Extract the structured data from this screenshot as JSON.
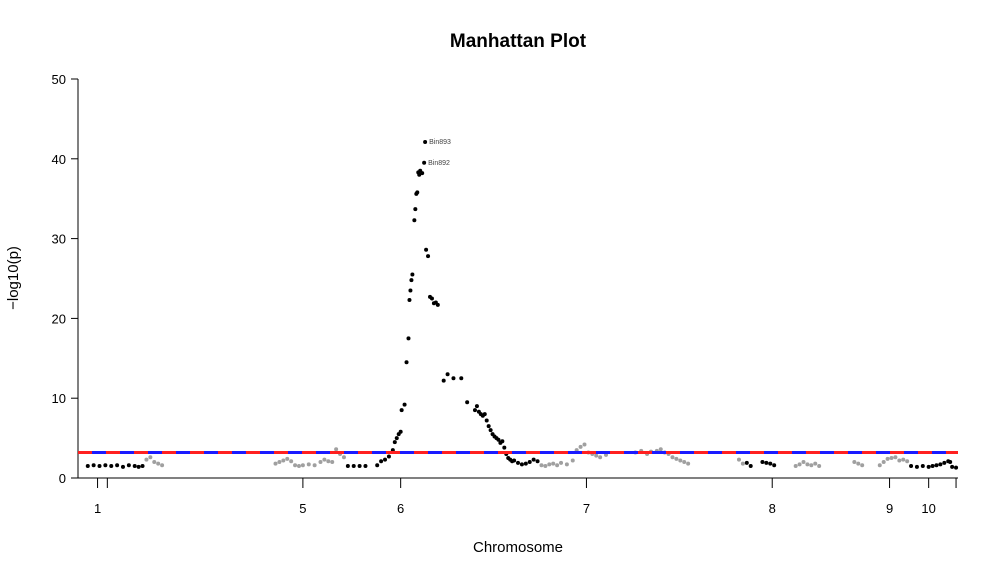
{
  "chart_data": {
    "type": "scatter",
    "title": "Manhattan Plot",
    "xlabel": "Chromosome",
    "ylabel": "−log10(p)",
    "ylim": [
      0,
      50
    ],
    "yticks": [
      0,
      10,
      20,
      30,
      40,
      50
    ],
    "xticks": [
      {
        "label": "1",
        "x": 0.5
      },
      {
        "label": "5",
        "x": 11
      },
      {
        "label": "6",
        "x": 16
      },
      {
        "label": "7",
        "x": 25.5
      },
      {
        "label": "8",
        "x": 35
      },
      {
        "label": "9",
        "x": 41
      },
      {
        "label": "10",
        "x": 43
      }
    ],
    "xlim": [
      -0.5,
      44.5
    ],
    "threshold": 3.2,
    "colors": {
      "odd": "#000000",
      "even": "#a0a0a0",
      "threshold_a": "#1a1aff",
      "threshold_b": "#ff2020"
    },
    "series": [
      {
        "color": "black",
        "points": [
          [
            0.0,
            1.5
          ],
          [
            0.3,
            1.6
          ],
          [
            0.6,
            1.5
          ],
          [
            0.9,
            1.6
          ],
          [
            1.2,
            1.5
          ],
          [
            1.5,
            1.6
          ],
          [
            1.8,
            1.4
          ],
          [
            2.1,
            1.6
          ],
          [
            2.4,
            1.5
          ],
          [
            2.6,
            1.4
          ],
          [
            2.8,
            1.5
          ]
        ]
      },
      {
        "color": "gray",
        "points": [
          [
            3.0,
            2.3
          ],
          [
            3.2,
            2.6
          ],
          [
            3.4,
            2.0
          ],
          [
            3.6,
            1.8
          ],
          [
            3.8,
            1.6
          ],
          [
            9.6,
            1.8
          ],
          [
            9.8,
            2.0
          ],
          [
            10.0,
            2.2
          ],
          [
            10.2,
            2.4
          ],
          [
            10.4,
            2.1
          ],
          [
            10.6,
            1.6
          ],
          [
            10.8,
            1.5
          ],
          [
            11.0,
            1.6
          ],
          [
            11.3,
            1.7
          ],
          [
            11.6,
            1.6
          ],
          [
            11.9,
            2.0
          ],
          [
            12.1,
            2.3
          ],
          [
            12.3,
            2.1
          ],
          [
            12.5,
            2.0
          ],
          [
            12.7,
            3.6
          ],
          [
            12.9,
            3.0
          ],
          [
            13.1,
            2.6
          ]
        ]
      },
      {
        "color": "black",
        "points": [
          [
            13.3,
            1.5
          ],
          [
            13.6,
            1.5
          ],
          [
            13.9,
            1.5
          ],
          [
            14.2,
            1.5
          ],
          [
            14.8,
            1.6
          ],
          [
            15.0,
            2.1
          ],
          [
            15.2,
            2.3
          ],
          [
            15.4,
            2.7
          ],
          [
            15.6,
            3.5
          ],
          [
            15.7,
            4.5
          ],
          [
            15.8,
            5.0
          ],
          [
            15.9,
            5.5
          ],
          [
            16.0,
            5.8
          ],
          [
            16.05,
            8.5
          ],
          [
            16.2,
            9.2
          ],
          [
            16.3,
            14.5
          ],
          [
            16.4,
            17.5
          ],
          [
            16.45,
            22.3
          ],
          [
            16.5,
            23.5
          ],
          [
            16.55,
            24.8
          ],
          [
            16.6,
            25.5
          ],
          [
            16.7,
            32.3
          ],
          [
            16.75,
            33.7
          ],
          [
            16.8,
            35.6
          ],
          [
            16.85,
            35.8
          ],
          [
            16.9,
            38.3
          ],
          [
            16.95,
            38.0
          ],
          [
            17.0,
            38.5
          ],
          [
            17.1,
            38.2
          ],
          [
            17.2,
            39.5
          ],
          [
            17.25,
            42.1
          ],
          [
            17.3,
            28.6
          ],
          [
            17.4,
            27.8
          ],
          [
            17.5,
            22.7
          ],
          [
            17.6,
            22.5
          ],
          [
            17.7,
            21.9
          ],
          [
            17.8,
            22.0
          ],
          [
            17.9,
            21.7
          ],
          [
            18.2,
            12.2
          ],
          [
            18.4,
            13.0
          ],
          [
            18.7,
            12.5
          ],
          [
            19.1,
            12.5
          ],
          [
            19.4,
            9.5
          ],
          [
            19.8,
            8.5
          ],
          [
            19.9,
            9.0
          ],
          [
            20.0,
            8.3
          ],
          [
            20.1,
            8.0
          ],
          [
            20.2,
            7.8
          ],
          [
            20.3,
            8.0
          ],
          [
            20.4,
            7.2
          ],
          [
            20.5,
            6.5
          ],
          [
            20.6,
            6.0
          ],
          [
            20.7,
            5.5
          ],
          [
            20.8,
            5.2
          ],
          [
            20.9,
            5.0
          ],
          [
            21.0,
            4.8
          ],
          [
            21.1,
            4.4
          ],
          [
            21.2,
            4.6
          ],
          [
            21.3,
            3.8
          ],
          [
            21.4,
            3.0
          ],
          [
            21.5,
            2.5
          ],
          [
            21.6,
            2.3
          ],
          [
            21.7,
            2.1
          ],
          [
            21.8,
            2.2
          ],
          [
            22.0,
            1.9
          ],
          [
            22.2,
            1.7
          ],
          [
            22.4,
            1.8
          ],
          [
            22.6,
            2.0
          ],
          [
            22.8,
            2.3
          ],
          [
            23.0,
            2.1
          ]
        ]
      },
      {
        "color": "gray",
        "points": [
          [
            23.2,
            1.6
          ],
          [
            23.4,
            1.5
          ],
          [
            23.6,
            1.7
          ],
          [
            23.8,
            1.8
          ],
          [
            24.0,
            1.6
          ],
          [
            24.2,
            1.9
          ],
          [
            24.5,
            1.7
          ],
          [
            24.8,
            2.2
          ],
          [
            25.0,
            3.5
          ],
          [
            25.2,
            3.9
          ],
          [
            25.4,
            4.2
          ],
          [
            25.6,
            3.2
          ],
          [
            25.8,
            3.0
          ],
          [
            26.0,
            2.8
          ],
          [
            26.2,
            2.6
          ],
          [
            26.5,
            2.9
          ],
          [
            28.0,
            3.2
          ],
          [
            28.3,
            3.4
          ],
          [
            28.6,
            3.0
          ],
          [
            28.8,
            3.3
          ],
          [
            29.1,
            3.4
          ],
          [
            29.3,
            3.6
          ],
          [
            29.5,
            3.2
          ],
          [
            29.7,
            3.0
          ],
          [
            29.9,
            2.6
          ],
          [
            30.1,
            2.4
          ],
          [
            30.3,
            2.2
          ],
          [
            30.5,
            2.0
          ],
          [
            30.7,
            1.8
          ]
        ]
      },
      {
        "color": "black",
        "points": [
          [
            33.7,
            1.9
          ],
          [
            33.9,
            1.5
          ],
          [
            34.5,
            2.0
          ],
          [
            34.7,
            1.9
          ],
          [
            34.9,
            1.8
          ],
          [
            35.1,
            1.6
          ]
        ]
      },
      {
        "color": "gray",
        "points": [
          [
            33.3,
            2.3
          ],
          [
            33.5,
            1.8
          ],
          [
            36.2,
            1.5
          ],
          [
            36.4,
            1.7
          ],
          [
            36.6,
            2.0
          ],
          [
            36.8,
            1.7
          ],
          [
            37.0,
            1.6
          ],
          [
            37.2,
            1.8
          ],
          [
            37.4,
            1.5
          ],
          [
            39.2,
            2.0
          ],
          [
            39.4,
            1.8
          ],
          [
            39.6,
            1.6
          ],
          [
            40.5,
            1.6
          ],
          [
            40.7,
            2.0
          ],
          [
            40.9,
            2.4
          ],
          [
            41.1,
            2.5
          ],
          [
            41.3,
            2.6
          ],
          [
            41.5,
            2.2
          ],
          [
            41.7,
            2.3
          ],
          [
            41.9,
            2.1
          ]
        ]
      },
      {
        "color": "black",
        "points": [
          [
            42.1,
            1.5
          ],
          [
            42.4,
            1.4
          ],
          [
            42.7,
            1.5
          ],
          [
            43.0,
            1.4
          ],
          [
            43.2,
            1.5
          ],
          [
            43.4,
            1.6
          ],
          [
            43.6,
            1.7
          ],
          [
            43.8,
            1.9
          ],
          [
            44.0,
            2.1
          ],
          [
            44.1,
            2.0
          ],
          [
            44.2,
            1.4
          ],
          [
            44.4,
            1.3
          ]
        ]
      }
    ],
    "annotations": [
      {
        "text": "Bin893",
        "x": 17.25,
        "y": 42.1
      },
      {
        "text": "Bin892",
        "x": 17.2,
        "y": 39.5
      }
    ]
  }
}
